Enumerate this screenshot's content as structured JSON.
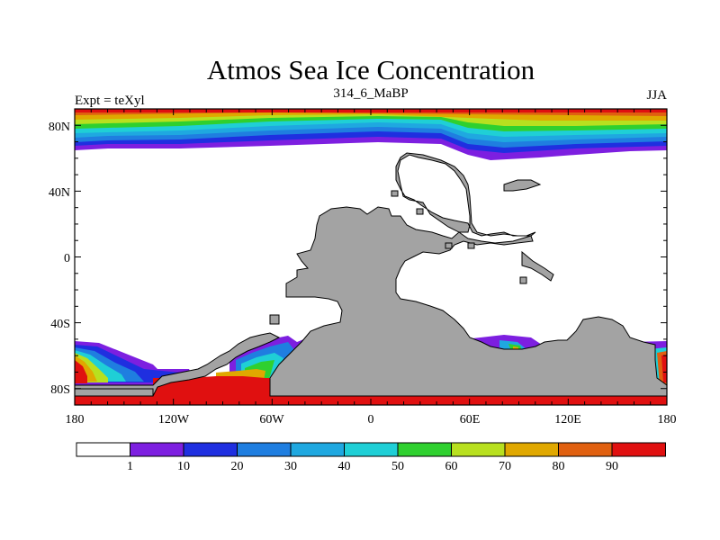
{
  "header": {
    "title": "Atmos Sea Ice Concentration",
    "left": "Expt = teXyl",
    "center": "314_6_MaBP",
    "right": "JJA"
  },
  "axes": {
    "lat_labels": [
      "80N",
      "40N",
      "0",
      "40S",
      "80S"
    ],
    "lon_labels": [
      "180",
      "120W",
      "60W",
      "0",
      "60E",
      "120E",
      "180"
    ]
  },
  "legend": {
    "labels": [
      "1",
      "10",
      "20",
      "30",
      "40",
      "50",
      "60",
      "70",
      "80",
      "90"
    ],
    "colors": [
      "#ffffff",
      "#7d1fe0",
      "#1f2fe0",
      "#1f7ee0",
      "#1fa8e0",
      "#1fcfd6",
      "#2fd02f",
      "#b8e01f",
      "#e0a800",
      "#e06010",
      "#e01010"
    ]
  },
  "colors": {
    "land": "#a3a3a3",
    "ocean": "#ffffff"
  }
}
